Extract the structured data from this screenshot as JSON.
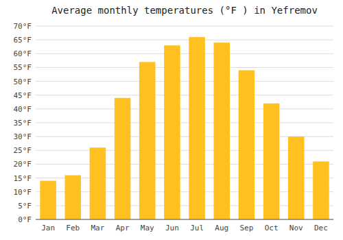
{
  "chart_data": {
    "type": "bar",
    "title": "Average monthly temperatures (°F ) in Yefremov",
    "categories": [
      "Jan",
      "Feb",
      "Mar",
      "Apr",
      "May",
      "Jun",
      "Jul",
      "Aug",
      "Sep",
      "Oct",
      "Nov",
      "Dec"
    ],
    "values": [
      14.0,
      16.0,
      26.0,
      44.0,
      57.0,
      63.0,
      66.0,
      64.0,
      54.0,
      42.0,
      30.0,
      21.0
    ],
    "color": "#FFC020",
    "ylim": [
      0,
      70
    ],
    "yticks": [
      {
        "value": 0,
        "label": "0°F"
      },
      {
        "value": 5,
        "label": "5°F"
      },
      {
        "value": 10,
        "label": "10°F"
      },
      {
        "value": 15,
        "label": "15°F"
      },
      {
        "value": 20,
        "label": "20°F"
      },
      {
        "value": 25,
        "label": "25°F"
      },
      {
        "value": 30,
        "label": "30°F"
      },
      {
        "value": 35,
        "label": "35°F"
      },
      {
        "value": 40,
        "label": "40°F"
      },
      {
        "value": 45,
        "label": "45°F"
      },
      {
        "value": 50,
        "label": "50°F"
      },
      {
        "value": 55,
        "label": "55°F"
      },
      {
        "value": 60,
        "label": "60°F"
      },
      {
        "value": 65,
        "label": "65°F"
      },
      {
        "value": 70,
        "label": "70°F"
      }
    ],
    "grid": true
  }
}
